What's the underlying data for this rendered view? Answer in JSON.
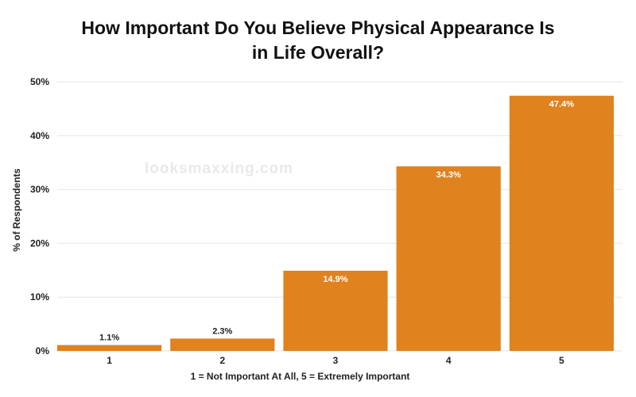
{
  "chart_data": {
    "type": "bar",
    "title_lines": [
      "How Important Do You Believe Physical Appearance Is",
      "in Life Overall?"
    ],
    "categories": [
      "1",
      "2",
      "3",
      "4",
      "5"
    ],
    "values": [
      1.1,
      2.3,
      14.9,
      34.3,
      47.4
    ],
    "value_labels": [
      "1.1%",
      "2.3%",
      "14.9%",
      "34.3%",
      "47.4%"
    ],
    "xlabel": "1 = Not Important At All, 5 = Extremely Important",
    "ylabel": "% of Respondents",
    "ylim": [
      0,
      50
    ],
    "yticks": [
      0,
      10,
      20,
      30,
      40,
      50
    ],
    "ytick_labels": [
      "0%",
      "10%",
      "20%",
      "30%",
      "40%",
      "50%"
    ],
    "grid": true,
    "bar_color": "#e0821e",
    "watermark": "looksmaxxing.com"
  }
}
